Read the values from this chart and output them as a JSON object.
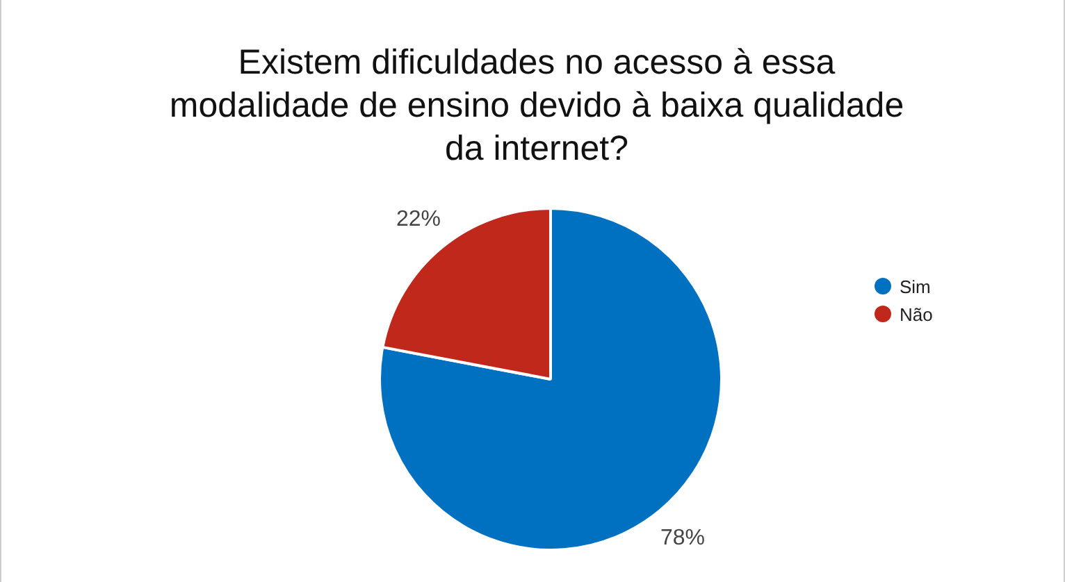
{
  "chart_data": {
    "type": "pie",
    "title": "Existem dificuldades no acesso à essa modalidade de ensino devido à baixa qualidade da internet?",
    "categories": [
      "Sim",
      "Não"
    ],
    "values": [
      78,
      22
    ],
    "colors": [
      "#0070c0",
      "#c0281c"
    ],
    "value_labels": [
      "78%",
      "22%"
    ],
    "legend": "right"
  }
}
